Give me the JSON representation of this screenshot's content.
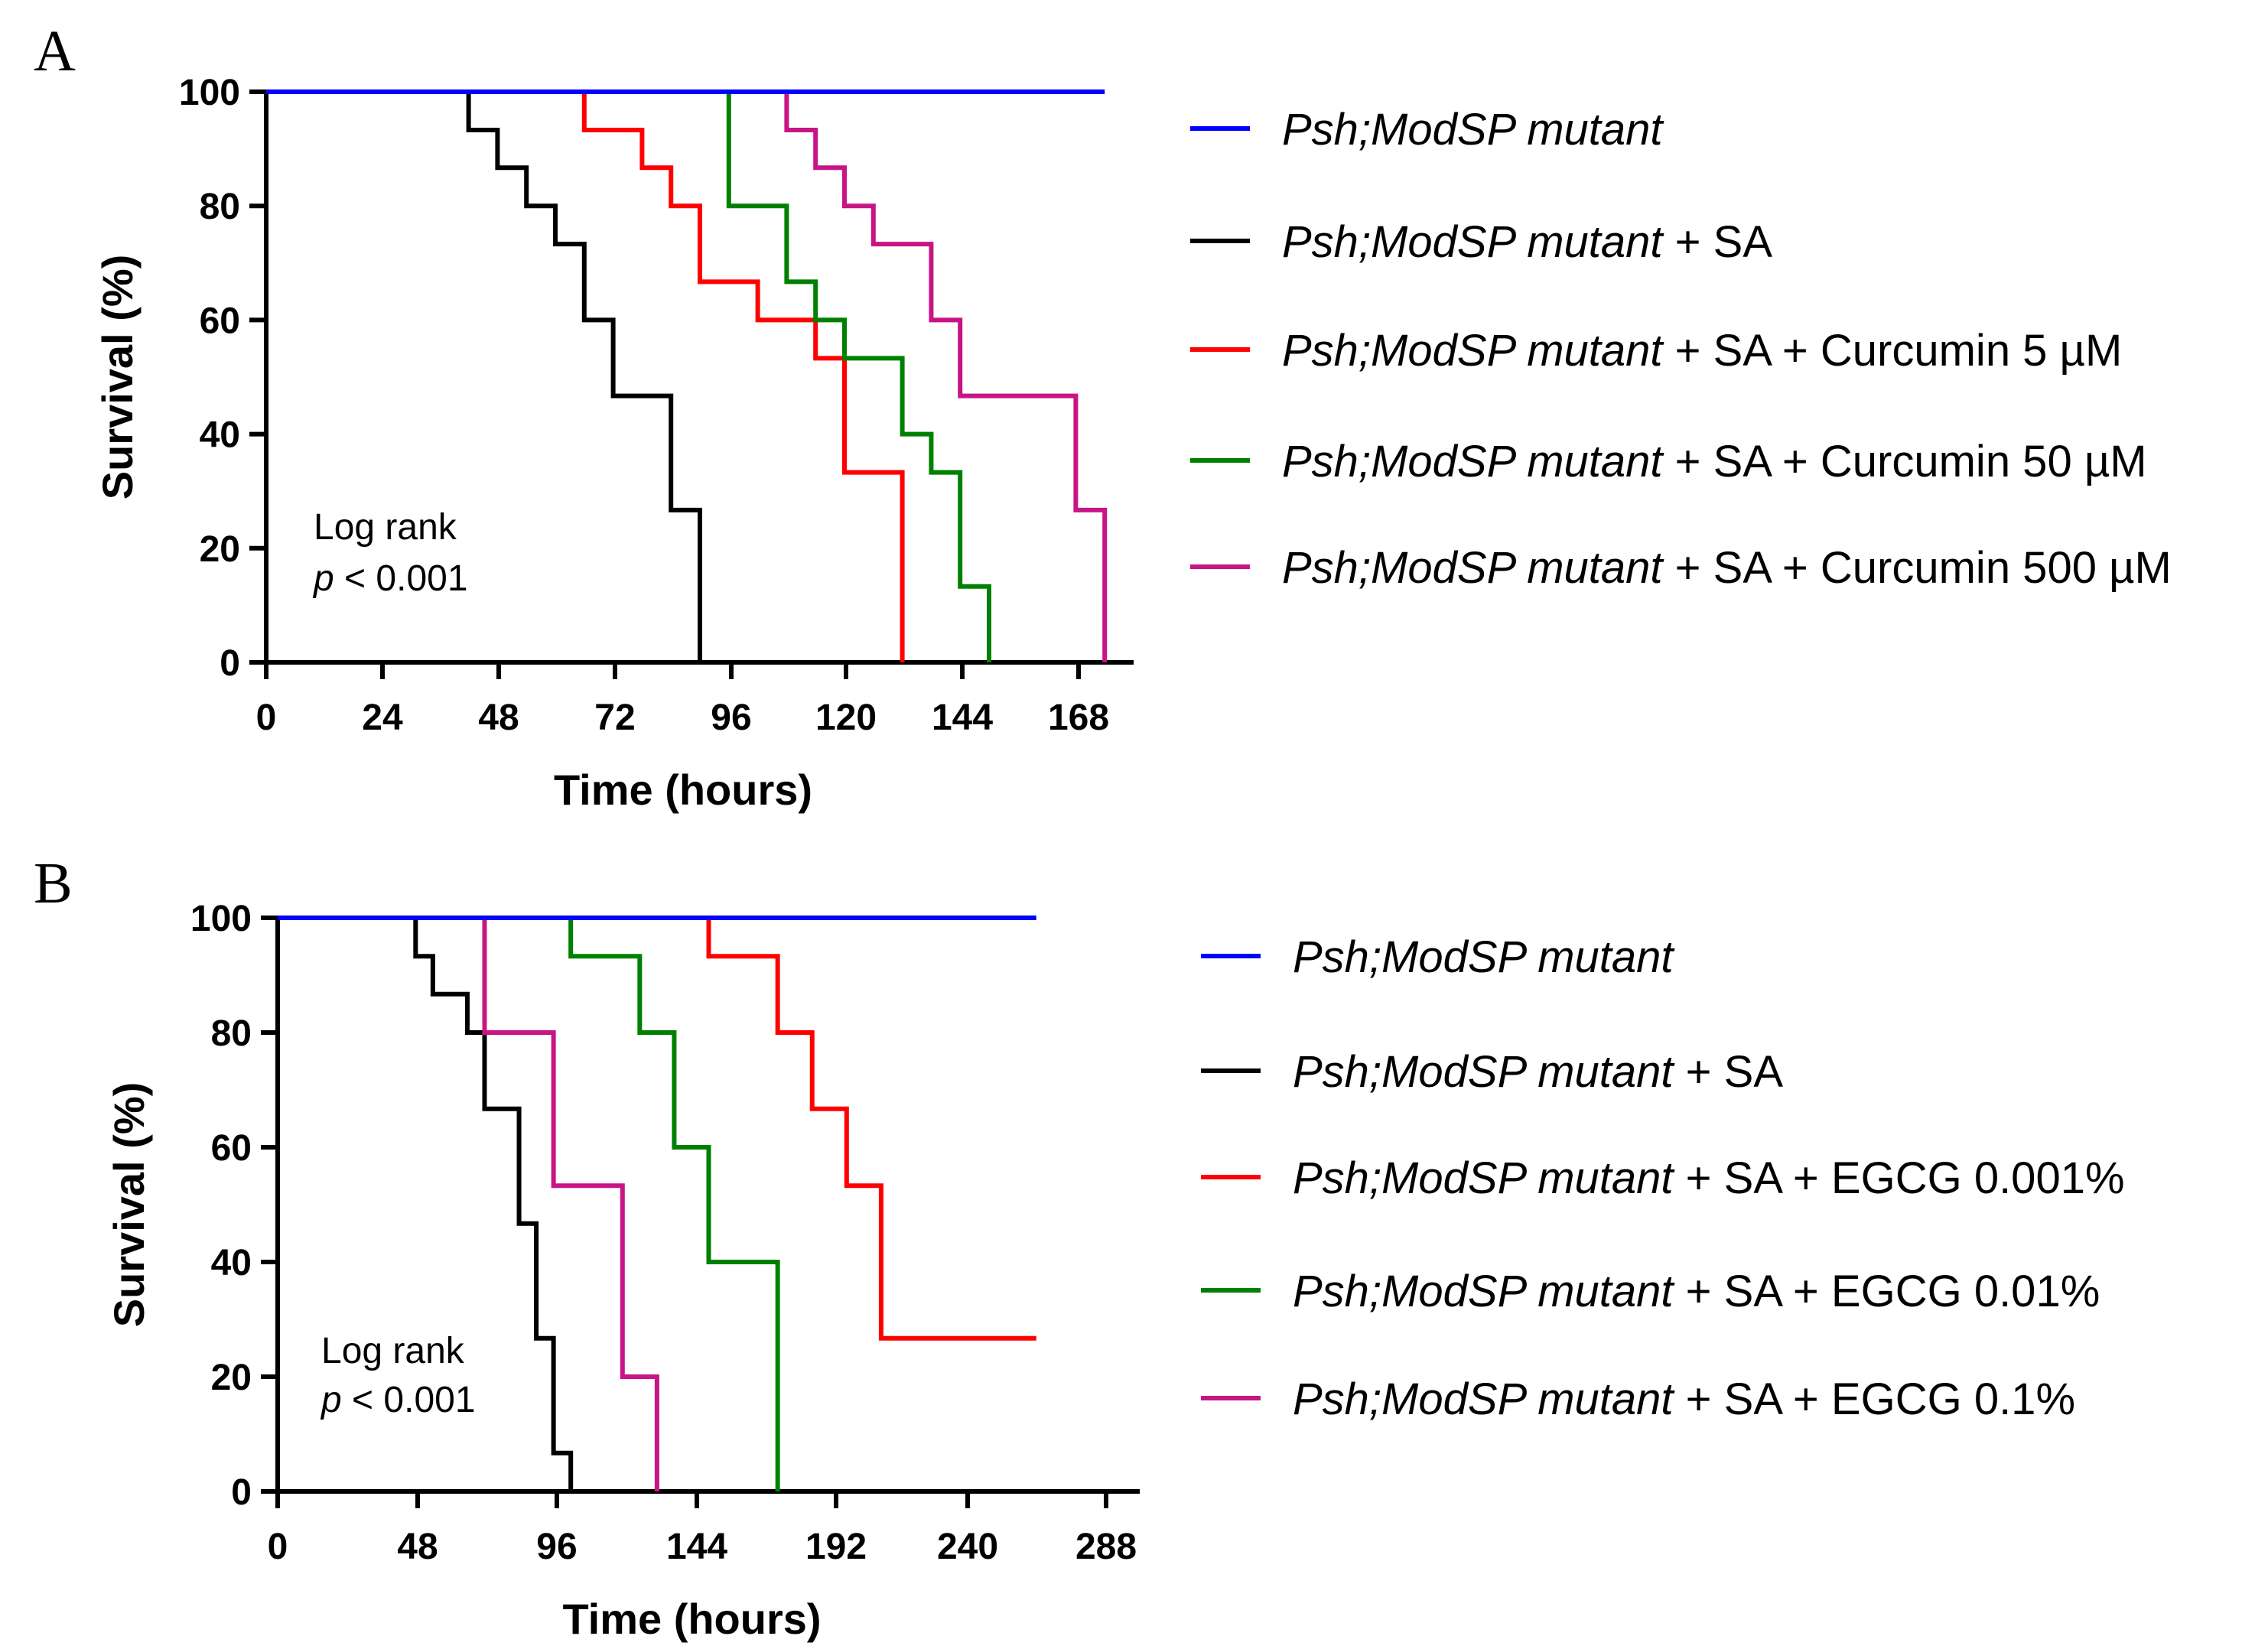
{
  "chart_data": [
    {
      "panel": "A",
      "type": "line",
      "subtype": "kaplan-meier step survival",
      "title": "",
      "xlabel": "Time (hours)",
      "ylabel": "Survival (%)",
      "xlim": [
        0,
        180
      ],
      "ylim": [
        0,
        100
      ],
      "xticks": [
        "0",
        "24",
        "48",
        "72",
        "96",
        "120",
        "144",
        "168"
      ],
      "yticks": [
        "0",
        "20",
        "40",
        "60",
        "80",
        "100"
      ],
      "annotation": {
        "line1": "Log rank",
        "p_symbol": "p",
        "p_rest": " < 0.001"
      },
      "series": [
        {
          "name": "Psh;ModSP mutant",
          "name_italic": "Psh;ModSP mutant",
          "name_rest": "",
          "color": "#0000ff",
          "x": [
            0,
            174
          ],
          "y": [
            100,
            100
          ]
        },
        {
          "name": "Psh;ModSP mutant + SA",
          "name_italic": "Psh;ModSP mutant",
          "name_rest": " + SA",
          "color": "#000000",
          "x": [
            0,
            42,
            48,
            54,
            60,
            66,
            72,
            84,
            90
          ],
          "y": [
            100,
            93.3,
            86.7,
            80,
            73.3,
            60,
            46.7,
            26.7,
            0
          ]
        },
        {
          "name": "Psh;ModSP mutant + SA + Curcumin 5 µM",
          "name_italic": "Psh;ModSP mutant",
          "name_rest": " + SA + Curcumin 5 µM",
          "color": "#ff0000",
          "x": [
            0,
            66,
            78,
            84,
            90,
            102,
            114,
            120,
            132
          ],
          "y": [
            100,
            93.3,
            86.7,
            80,
            66.7,
            60,
            53.3,
            33.3,
            0
          ]
        },
        {
          "name": "Psh;ModSP mutant + SA + Curcumin 50 µM",
          "name_italic": "Psh;ModSP mutant",
          "name_rest": " + SA + Curcumin 50 µM",
          "color": "#008000",
          "x": [
            0,
            96,
            108,
            114,
            120,
            132,
            138,
            144,
            150
          ],
          "y": [
            100,
            80,
            66.7,
            60,
            53.3,
            40,
            33.3,
            13.3,
            0
          ]
        },
        {
          "name": "Psh;ModSP mutant + SA + Curcumin 500 µM",
          "name_italic": "Psh;ModSP mutant",
          "name_rest": " + SA + Curcumin 500 µM",
          "color": "#c71585",
          "x": [
            0,
            108,
            114,
            120,
            126,
            138,
            144,
            150,
            168,
            174
          ],
          "y": [
            100,
            93.3,
            86.7,
            80,
            73.3,
            60,
            46.7,
            46.7,
            26.7,
            0
          ]
        }
      ]
    },
    {
      "panel": "B",
      "type": "line",
      "subtype": "kaplan-meier step survival",
      "title": "",
      "xlabel": "Time (hours)",
      "ylabel": "Survival (%)",
      "xlim": [
        0,
        300
      ],
      "ylim": [
        0,
        100
      ],
      "xticks": [
        "0",
        "48",
        "96",
        "144",
        "192",
        "240",
        "288"
      ],
      "yticks": [
        "0",
        "20",
        "40",
        "60",
        "80",
        "100"
      ],
      "annotation": {
        "line1": "Log rank",
        "p_symbol": "p",
        "p_rest": " < 0.001"
      },
      "series": [
        {
          "name": "Psh;ModSP mutant",
          "name_italic": "Psh;ModSP mutant",
          "name_rest": "",
          "color": "#0000ff",
          "x": [
            0,
            264
          ],
          "y": [
            100,
            100
          ]
        },
        {
          "name": "Psh;ModSP mutant + SA",
          "name_italic": "Psh;ModSP mutant",
          "name_rest": " + SA",
          "color": "#000000",
          "x": [
            0,
            48,
            54,
            66,
            72,
            84,
            90,
            96,
            102
          ],
          "y": [
            100,
            93.3,
            86.7,
            80,
            66.7,
            46.7,
            26.7,
            6.7,
            0
          ]
        },
        {
          "name": "Psh;ModSP mutant + SA + EGCG 0.001%",
          "name_italic": "Psh;ModSP mutant",
          "name_rest": " + SA + EGCG 0.001%",
          "color": "#ff0000",
          "x": [
            0,
            150,
            174,
            186,
            198,
            210,
            264
          ],
          "y": [
            100,
            93.3,
            80,
            66.7,
            53.3,
            26.7,
            26.7
          ]
        },
        {
          "name": "Psh;ModSP mutant + SA + EGCG 0.01%",
          "name_italic": "Psh;ModSP mutant",
          "name_rest": " + SA + EGCG 0.01%",
          "color": "#008000",
          "x": [
            0,
            102,
            126,
            138,
            150,
            174
          ],
          "y": [
            100,
            93.3,
            80,
            60,
            40,
            0
          ]
        },
        {
          "name": "Psh;ModSP mutant + SA + EGCG 0.1%",
          "name_italic": "Psh;ModSP mutant",
          "name_rest": " + SA + EGCG 0.1%",
          "color": "#c71585",
          "x": [
            0,
            72,
            96,
            120,
            132
          ],
          "y": [
            100,
            80,
            53.3,
            20,
            0
          ]
        }
      ]
    }
  ]
}
